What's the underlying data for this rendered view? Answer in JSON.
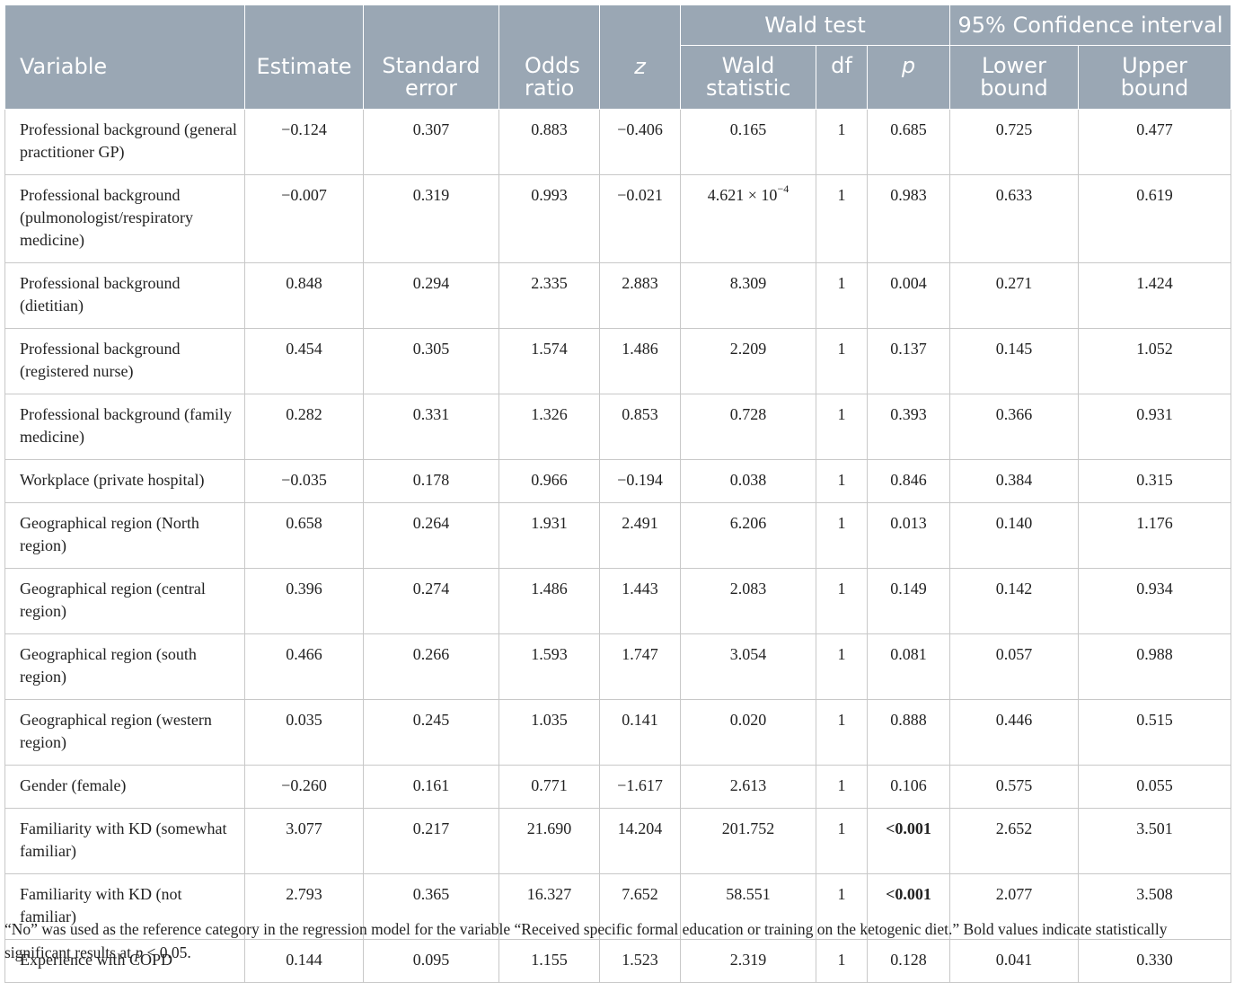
{
  "header": {
    "variable": "Variable",
    "estimate": "Estimate",
    "standard_error": "Standard error",
    "odds_ratio": "Odds ratio",
    "z": "z",
    "wald_group": "Wald test",
    "wald_statistic": "Wald statistic",
    "df": "df",
    "p": "p",
    "ci_group": "95% Confidence interval",
    "lower": "Lower bound",
    "upper": "Upper bound"
  },
  "rows": [
    {
      "variable": "Professional background (general practitioner GP)",
      "estimate": "−0.124",
      "se": "0.307",
      "or": "0.883",
      "z": "−0.406",
      "wald": "0.165",
      "df": "1",
      "p": "0.685",
      "lower": "0.725",
      "upper": "0.477"
    },
    {
      "variable": "Professional background (pulmonologist/respiratory medicine)",
      "estimate": "−0.007",
      "se": "0.319",
      "or": "0.993",
      "z": "−0.021",
      "wald_base": "4.621 × 10",
      "wald_exp": "−4",
      "df": "1",
      "p": "0.983",
      "lower": "0.633",
      "upper": "0.619"
    },
    {
      "variable": "Professional background (dietitian)",
      "estimate": "0.848",
      "se": "0.294",
      "or": "2.335",
      "z": "2.883",
      "wald": "8.309",
      "df": "1",
      "p": "0.004",
      "lower": "0.271",
      "upper": "1.424"
    },
    {
      "variable": "Professional background (registered nurse)",
      "estimate": "0.454",
      "se": "0.305",
      "or": "1.574",
      "z": "1.486",
      "wald": "2.209",
      "df": "1",
      "p": "0.137",
      "lower": "0.145",
      "upper": "1.052"
    },
    {
      "variable": "Professional background (family medicine)",
      "estimate": "0.282",
      "se": "0.331",
      "or": "1.326",
      "z": "0.853",
      "wald": "0.728",
      "df": "1",
      "p": "0.393",
      "lower": "0.366",
      "upper": "0.931"
    },
    {
      "variable": "Workplace (private hospital)",
      "estimate": "−0.035",
      "se": "0.178",
      "or": "0.966",
      "z": "−0.194",
      "wald": "0.038",
      "df": "1",
      "p": "0.846",
      "lower": "0.384",
      "upper": "0.315"
    },
    {
      "variable": "Geographical region (North region)",
      "estimate": "0.658",
      "se": "0.264",
      "or": "1.931",
      "z": "2.491",
      "wald": "6.206",
      "df": "1",
      "p": "0.013",
      "lower": "0.140",
      "upper": "1.176"
    },
    {
      "variable": "Geographical region (central region)",
      "estimate": "0.396",
      "se": "0.274",
      "or": "1.486",
      "z": "1.443",
      "wald": "2.083",
      "df": "1",
      "p": "0.149",
      "lower": "0.142",
      "upper": "0.934"
    },
    {
      "variable": "Geographical region (south region)",
      "estimate": "0.466",
      "se": "0.266",
      "or": "1.593",
      "z": "1.747",
      "wald": "3.054",
      "df": "1",
      "p": "0.081",
      "lower": "0.057",
      "upper": "0.988"
    },
    {
      "variable": "Geographical region (western region)",
      "estimate": "0.035",
      "se": "0.245",
      "or": "1.035",
      "z": "0.141",
      "wald": "0.020",
      "df": "1",
      "p": "0.888",
      "lower": "0.446",
      "upper": "0.515"
    },
    {
      "variable": "Gender (female)",
      "estimate": "−0.260",
      "se": "0.161",
      "or": "0.771",
      "z": "−1.617",
      "wald": "2.613",
      "df": "1",
      "p": "0.106",
      "lower": "0.575",
      "upper": "0.055"
    },
    {
      "variable": "Familiarity with KD (somewhat familiar)",
      "estimate": "3.077",
      "se": "0.217",
      "or": "21.690",
      "z": "14.204",
      "wald": "201.752",
      "df": "1",
      "p": "<0.001",
      "lower": "2.652",
      "upper": "3.501"
    },
    {
      "variable": "Familiarity with KD (not familiar)",
      "estimate": "2.793",
      "se": "0.365",
      "or": "16.327",
      "z": "7.652",
      "wald": "58.551",
      "df": "1",
      "p": "<0.001",
      "lower": "2.077",
      "upper": "3.508"
    },
    {
      "variable": "Experience with COPD",
      "estimate": "0.144",
      "se": "0.095",
      "or": "1.155",
      "z": "1.523",
      "wald": "2.319",
      "df": "1",
      "p": "0.128",
      "lower": "0.041",
      "upper": "0.330"
    }
  ],
  "footnote": {
    "text_before": "“No” was used as the reference category in the regression model for the variable “Received specific formal education or training on the ketogenic diet.” Bold values indicate statistically significant results at ",
    "p_symbol": "p",
    "text_after": " < 0.05."
  },
  "colors": {
    "header_bg": "#9aa7b4",
    "header_text": "#ffffff",
    "grid": "#c8c8c8"
  }
}
